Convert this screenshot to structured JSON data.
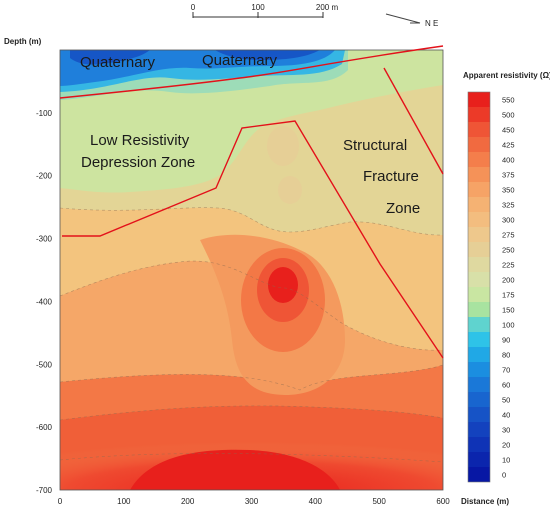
{
  "chart_data": {
    "type": "heatmap",
    "xlabel": "Distance (m)",
    "ylabel": "Depth (m)",
    "x_ticks": [
      0,
      100,
      200,
      300,
      400,
      500,
      600
    ],
    "y_ticks": [
      -100,
      -200,
      -300,
      -400,
      -500,
      -600,
      -700
    ],
    "xlim": [
      0,
      600
    ],
    "ylim": [
      -700,
      0
    ],
    "colorbar": {
      "title": "Apparent resistivity (Ω)",
      "levels": [
        550,
        500,
        450,
        425,
        400,
        375,
        350,
        325,
        300,
        275,
        250,
        225,
        200,
        175,
        150,
        100,
        90,
        80,
        70,
        60,
        50,
        40,
        30,
        20,
        10,
        0
      ],
      "colors": [
        "#e8201c",
        "#ec3a28",
        "#ef5536",
        "#f16a40",
        "#f47e4b",
        "#f59258",
        "#f6a366",
        "#f5b273",
        "#f3bd7f",
        "#eec88c",
        "#e6cf96",
        "#dfd9a0",
        "#d8e0a8",
        "#c9e6a2",
        "#a8e3a0",
        "#5fd3cf",
        "#2ec3e8",
        "#20a8e6",
        "#1b8ee0",
        "#1a78d8",
        "#1865cf",
        "#1653c6",
        "#1342be",
        "#0f33b6",
        "#0b25ad",
        "#0717a4"
      ]
    },
    "annotations": [
      "Quaternary",
      "Quaternary",
      "Low Resistivity",
      "Depression Zone",
      "Structural",
      "Fracture",
      "Zone"
    ]
  },
  "scale_bar": {
    "ticks": [
      "0",
      "100",
      "200 m"
    ]
  },
  "north_arrow": {
    "label": "N E"
  }
}
